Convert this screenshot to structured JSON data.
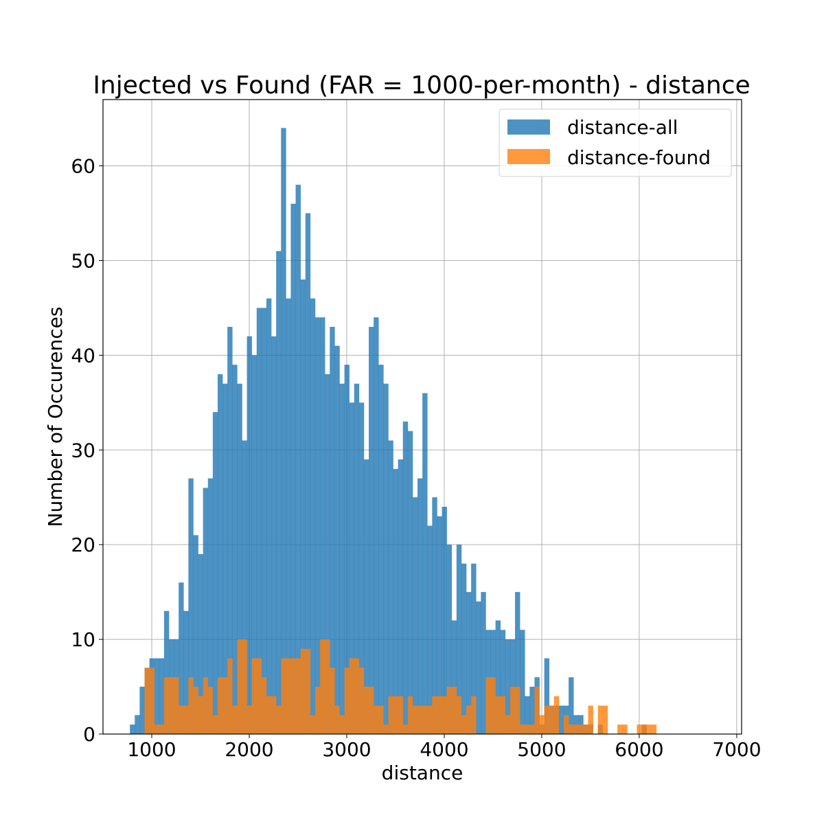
{
  "chart_data": {
    "type": "bar",
    "title": "Injected vs Found (FAR = 1000-per-month) - distance",
    "xlabel": "distance",
    "ylabel": "Number of Occurences",
    "xlim": [
      500,
      7050
    ],
    "ylim": [
      0,
      67
    ],
    "xticks": [
      1000,
      2000,
      3000,
      4000,
      5000,
      6000,
      7000
    ],
    "yticks": [
      0,
      10,
      20,
      30,
      40,
      50,
      60
    ],
    "grid": true,
    "legend_position": "top-right",
    "bin_start": 776,
    "bin_width": 50,
    "series": [
      {
        "name": "distance-all",
        "color": "#1f77b4",
        "values": [
          1,
          2,
          5,
          7,
          8,
          8,
          8,
          13,
          10,
          10,
          16,
          13,
          27,
          21,
          19,
          26,
          27,
          34,
          38,
          37,
          43,
          39,
          37,
          31,
          42,
          40,
          45,
          45,
          46,
          42,
          51,
          64,
          46,
          56,
          58,
          48,
          55,
          46,
          44,
          44,
          38,
          43,
          41,
          37,
          39,
          35,
          37,
          35,
          29,
          43,
          44,
          39,
          37,
          31,
          28,
          29,
          33,
          32,
          25,
          27,
          36,
          22,
          25,
          23,
          24,
          20,
          12,
          20,
          18,
          15,
          18,
          14,
          15,
          11,
          11,
          12,
          11,
          10,
          10,
          15,
          11,
          4,
          5,
          6,
          1,
          8,
          3,
          3,
          3,
          3,
          6,
          2,
          2,
          1,
          1,
          0,
          1,
          0,
          0,
          0,
          0,
          0,
          0,
          0,
          0,
          1
        ]
      },
      {
        "name": "distance-found",
        "color": "#ff7f0e",
        "values": [
          0,
          0,
          0,
          7,
          7,
          1,
          1,
          6,
          6,
          6,
          3,
          3,
          6,
          5,
          4,
          6,
          5,
          2,
          6,
          6,
          8,
          3,
          10,
          10,
          3,
          8,
          8,
          6,
          4,
          4,
          3,
          8,
          8,
          8,
          8,
          9,
          9,
          2,
          5,
          10,
          10,
          7,
          3,
          2,
          7,
          8,
          8,
          7,
          5,
          5,
          3,
          3,
          1,
          4,
          4,
          4,
          1,
          4,
          3,
          3,
          3,
          3,
          4,
          4,
          4,
          5,
          5,
          4,
          2,
          3,
          4,
          0,
          0,
          6,
          6,
          4,
          4,
          2,
          5,
          5,
          1,
          1,
          1,
          5,
          2,
          3,
          3,
          4,
          0,
          2,
          1,
          1,
          1,
          1,
          3,
          0,
          3,
          3,
          0,
          0,
          1,
          1,
          0,
          0,
          1,
          1,
          1,
          1,
          0,
          0,
          0
        ]
      }
    ],
    "found_bin_start": 776,
    "found_bin_width": 50
  }
}
